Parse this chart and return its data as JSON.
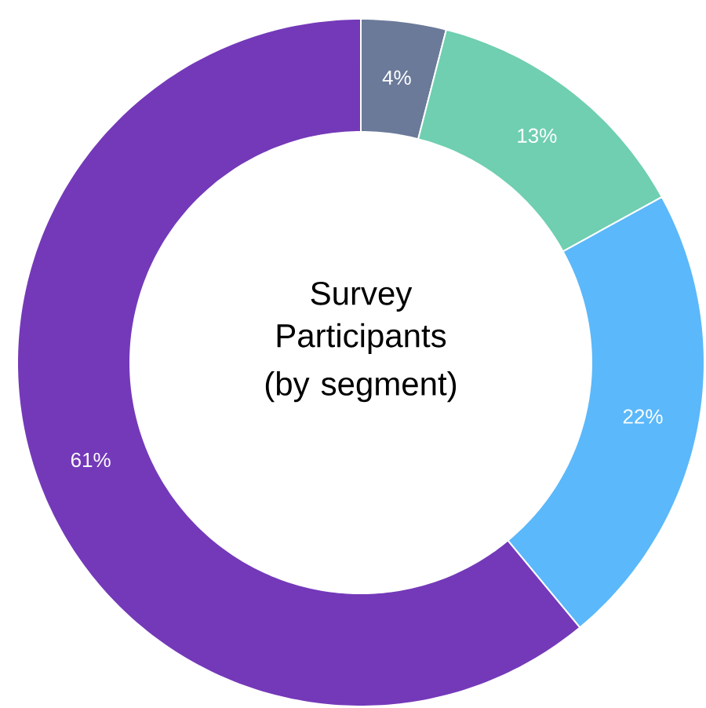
{
  "chart_data": {
    "type": "donut",
    "title": "Survey Participants",
    "subtitle": "(by segment)",
    "categories": [
      null,
      null,
      null,
      null
    ],
    "values": [
      4,
      13,
      22,
      61
    ],
    "colors": [
      "#6b7a99",
      "#6fcfb0",
      "#5bb8fa",
      "#7439b9"
    ],
    "value_labels": [
      "4%",
      "13%",
      "22%",
      "61%"
    ]
  }
}
